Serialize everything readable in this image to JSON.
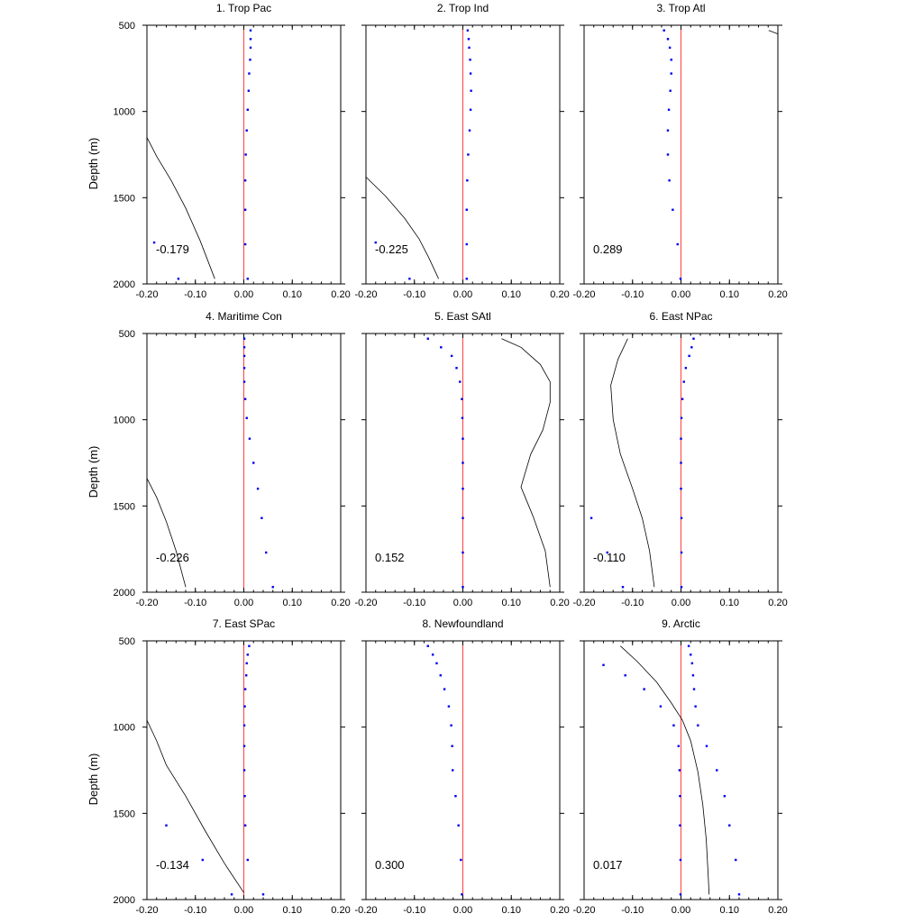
{
  "chart_data": {
    "type": "scatter",
    "ylabel": "Depth (m)",
    "ylim": [
      2000,
      500
    ],
    "xlim": [
      -0.2,
      0.2
    ],
    "y_inverted": true,
    "x_ticks": [
      "-0.20",
      "-0.10",
      "0.00",
      "0.10",
      "0.20"
    ],
    "y_ticks": [
      "500",
      "1000",
      "1500",
      "2000"
    ],
    "x_tick_values": [
      -0.2,
      -0.1,
      0,
      0.1,
      0.2
    ],
    "y_tick_values": [
      500,
      1000,
      1500,
      2000
    ],
    "colors": {
      "points": "#0000ee",
      "zero_line": "#ff4040",
      "curve": "#000000"
    },
    "panels": [
      {
        "title": "1. Trop Pac",
        "correlation": "-0.179",
        "points_a": [
          [
            0.014,
            530
          ],
          [
            0.014,
            580
          ],
          [
            0.014,
            630
          ],
          [
            0.013,
            700
          ],
          [
            0.011,
            780
          ],
          [
            0.01,
            880
          ],
          [
            0.008,
            990
          ],
          [
            0.006,
            1110
          ],
          [
            0.004,
            1250
          ],
          [
            0.003,
            1400
          ],
          [
            0.003,
            1570
          ],
          [
            0.003,
            1770
          ],
          [
            0.008,
            1970
          ]
        ],
        "points_b": [
          [
            -0.185,
            1760
          ],
          [
            -0.135,
            1970
          ]
        ],
        "curve": [
          [
            -0.2,
            1150
          ],
          [
            -0.18,
            1260
          ],
          [
            -0.15,
            1400
          ],
          [
            -0.12,
            1560
          ],
          [
            -0.09,
            1750
          ],
          [
            -0.06,
            1970
          ]
        ]
      },
      {
        "title": "2. Trop Ind",
        "correlation": "-0.225",
        "points_a": [
          [
            0.01,
            530
          ],
          [
            0.012,
            580
          ],
          [
            0.013,
            630
          ],
          [
            0.015,
            700
          ],
          [
            0.016,
            780
          ],
          [
            0.017,
            880
          ],
          [
            0.016,
            990
          ],
          [
            0.014,
            1110
          ],
          [
            0.011,
            1250
          ],
          [
            0.009,
            1400
          ],
          [
            0.008,
            1570
          ],
          [
            0.008,
            1770
          ],
          [
            0.008,
            1970
          ]
        ],
        "points_b": [
          [
            -0.18,
            1760
          ],
          [
            -0.11,
            1970
          ]
        ],
        "curve": [
          [
            -0.2,
            1380
          ],
          [
            -0.16,
            1490
          ],
          [
            -0.12,
            1620
          ],
          [
            -0.09,
            1740
          ],
          [
            -0.07,
            1850
          ],
          [
            -0.05,
            1970
          ]
        ]
      },
      {
        "title": "3. Trop Atl",
        "correlation": "0.289",
        "points_a": [
          [
            -0.035,
            530
          ],
          [
            -0.027,
            580
          ],
          [
            -0.023,
            630
          ],
          [
            -0.02,
            700
          ],
          [
            -0.02,
            780
          ],
          [
            -0.022,
            880
          ],
          [
            -0.025,
            990
          ],
          [
            -0.027,
            1110
          ],
          [
            -0.027,
            1250
          ],
          [
            -0.024,
            1400
          ],
          [
            -0.017,
            1570
          ],
          [
            -0.007,
            1770
          ],
          [
            -0.001,
            1970
          ]
        ],
        "points_b": [],
        "curve": [
          [
            0.181,
            530
          ],
          [
            0.2,
            550
          ]
        ]
      },
      {
        "title": "4. Maritime Con",
        "correlation": "-0.226",
        "points_a": [
          [
            0.001,
            530
          ],
          [
            0.001,
            580
          ],
          [
            0.001,
            630
          ],
          [
            0.001,
            700
          ],
          [
            0.001,
            780
          ],
          [
            0.003,
            880
          ],
          [
            0.006,
            990
          ],
          [
            0.012,
            1110
          ],
          [
            0.02,
            1250
          ],
          [
            0.029,
            1400
          ],
          [
            0.037,
            1570
          ],
          [
            0.046,
            1770
          ],
          [
            0.06,
            1970
          ]
        ],
        "points_b": [],
        "curve": [
          [
            -0.2,
            1340
          ],
          [
            -0.18,
            1450
          ],
          [
            -0.16,
            1590
          ],
          [
            -0.14,
            1760
          ],
          [
            -0.12,
            1970
          ]
        ]
      },
      {
        "title": "5. East SAtl",
        "correlation": "0.152",
        "points_a": [
          [
            -0.072,
            530
          ],
          [
            -0.045,
            580
          ],
          [
            -0.023,
            630
          ],
          [
            -0.013,
            700
          ],
          [
            -0.006,
            780
          ],
          [
            -0.002,
            880
          ],
          [
            -0.001,
            990
          ],
          [
            0.0,
            1110
          ],
          [
            0.0,
            1250
          ],
          [
            0.0,
            1400
          ],
          [
            0.0,
            1570
          ],
          [
            0.0,
            1770
          ],
          [
            0.0,
            1970
          ]
        ],
        "points_b": [],
        "curve": [
          [
            0.08,
            530
          ],
          [
            0.12,
            580
          ],
          [
            0.16,
            680
          ],
          [
            0.18,
            780
          ],
          [
            0.18,
            900
          ],
          [
            0.165,
            1060
          ],
          [
            0.14,
            1200
          ],
          [
            0.12,
            1390
          ],
          [
            0.145,
            1560
          ],
          [
            0.17,
            1760
          ],
          [
            0.18,
            1970
          ]
        ]
      },
      {
        "title": "6. East NPac",
        "correlation": "-0.110",
        "points_a": [
          [
            0.026,
            530
          ],
          [
            0.022,
            580
          ],
          [
            0.017,
            630
          ],
          [
            0.01,
            700
          ],
          [
            0.006,
            780
          ],
          [
            0.003,
            880
          ],
          [
            0.001,
            990
          ],
          [
            0.0,
            1110
          ],
          [
            0.0,
            1250
          ],
          [
            0.0,
            1400
          ],
          [
            0.001,
            1570
          ],
          [
            0.001,
            1770
          ],
          [
            0.001,
            1970
          ]
        ],
        "points_b": [
          [
            -0.185,
            1570
          ],
          [
            -0.152,
            1770
          ],
          [
            -0.12,
            1970
          ]
        ],
        "curve": [
          [
            -0.11,
            530
          ],
          [
            -0.13,
            650
          ],
          [
            -0.145,
            800
          ],
          [
            -0.14,
            1000
          ],
          [
            -0.125,
            1200
          ],
          [
            -0.1,
            1400
          ],
          [
            -0.08,
            1570
          ],
          [
            -0.065,
            1760
          ],
          [
            -0.055,
            1970
          ]
        ]
      },
      {
        "title": "7. East SPac",
        "correlation": "-0.134",
        "points_a": [
          [
            0.011,
            530
          ],
          [
            0.008,
            580
          ],
          [
            0.006,
            630
          ],
          [
            0.005,
            700
          ],
          [
            0.003,
            780
          ],
          [
            0.002,
            880
          ],
          [
            0.001,
            990
          ],
          [
            0.001,
            1110
          ],
          [
            0.001,
            1250
          ],
          [
            0.002,
            1400
          ],
          [
            0.003,
            1570
          ],
          [
            0.008,
            1770
          ],
          [
            0.04,
            1970
          ]
        ],
        "points_b": [
          [
            -0.16,
            1570
          ],
          [
            -0.085,
            1770
          ],
          [
            -0.025,
            1970
          ]
        ],
        "curve": [
          [
            -0.2,
            960
          ],
          [
            -0.18,
            1080
          ],
          [
            -0.16,
            1220
          ],
          [
            -0.12,
            1400
          ],
          [
            -0.08,
            1600
          ],
          [
            -0.04,
            1790
          ],
          [
            0.0,
            1960
          ]
        ]
      },
      {
        "title": "8. Newfoundland",
        "correlation": "0.300",
        "points_a": [
          [
            -0.072,
            530
          ],
          [
            -0.062,
            580
          ],
          [
            -0.054,
            630
          ],
          [
            -0.046,
            700
          ],
          [
            -0.038,
            780
          ],
          [
            -0.029,
            880
          ],
          [
            -0.024,
            990
          ],
          [
            -0.022,
            1110
          ],
          [
            -0.021,
            1250
          ],
          [
            -0.015,
            1400
          ],
          [
            -0.009,
            1570
          ],
          [
            -0.004,
            1770
          ],
          [
            -0.002,
            1970
          ]
        ],
        "points_b": [],
        "curve": []
      },
      {
        "title": "9. Arctic",
        "correlation": "0.017",
        "points_a": [
          [
            0.016,
            530
          ],
          [
            0.02,
            580
          ],
          [
            0.023,
            630
          ],
          [
            0.025,
            700
          ],
          [
            0.027,
            780
          ],
          [
            0.03,
            880
          ],
          [
            0.035,
            990
          ],
          [
            0.053,
            1110
          ],
          [
            0.074,
            1250
          ],
          [
            0.09,
            1400
          ],
          [
            0.1,
            1570
          ],
          [
            0.113,
            1770
          ],
          [
            0.12,
            1970
          ]
        ],
        "points_b": [
          [
            -0.16,
            640
          ],
          [
            -0.115,
            700
          ],
          [
            -0.076,
            780
          ],
          [
            -0.042,
            880
          ],
          [
            -0.015,
            990
          ],
          [
            -0.005,
            1110
          ],
          [
            -0.003,
            1250
          ],
          [
            -0.002,
            1400
          ],
          [
            -0.002,
            1570
          ],
          [
            -0.001,
            1770
          ],
          [
            -0.001,
            1970
          ]
        ],
        "curve": [
          [
            -0.125,
            530
          ],
          [
            -0.09,
            620
          ],
          [
            -0.05,
            740
          ],
          [
            -0.02,
            860
          ],
          [
            0.003,
            960
          ],
          [
            0.02,
            1080
          ],
          [
            0.035,
            1260
          ],
          [
            0.045,
            1450
          ],
          [
            0.052,
            1650
          ],
          [
            0.056,
            1850
          ],
          [
            0.058,
            1970
          ]
        ]
      }
    ]
  }
}
